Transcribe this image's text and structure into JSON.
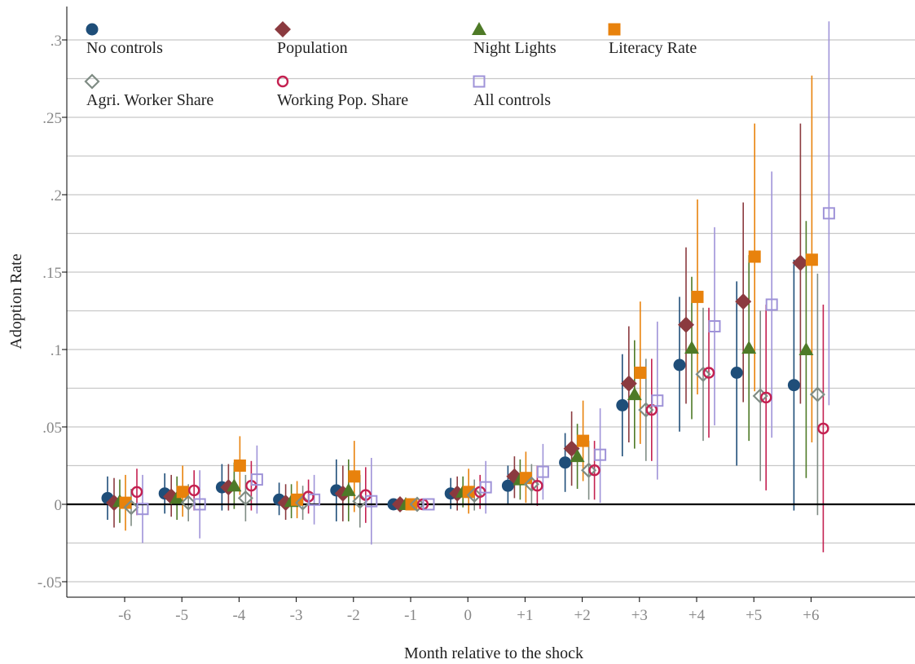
{
  "chart_data": {
    "type": "scatter",
    "xlabel": "Month relative to the shock",
    "ylabel": "Adoption Rate",
    "categories": [
      "-6",
      "-5",
      "-4",
      "-3",
      "-2",
      "-1",
      "0",
      "+1",
      "+2",
      "+3",
      "+4",
      "+5",
      "+6"
    ],
    "ylim": [
      -0.05,
      0.3
    ],
    "yticks": [
      ".3",
      ".25",
      ".2",
      ".15",
      ".1",
      ".05",
      "0",
      "-.05"
    ],
    "ytick_values": [
      0.3,
      0.25,
      0.2,
      0.15,
      0.1,
      0.05,
      0,
      -0.05
    ],
    "grid": true,
    "legend_position": "top",
    "series": [
      {
        "name": "No controls",
        "color": "#1f4e79",
        "marker": "circle",
        "values": [
          0.004,
          0.007,
          0.011,
          0.003,
          0.009,
          0.0,
          0.007,
          0.012,
          0.027,
          0.064,
          0.09,
          0.085,
          0.077
        ],
        "ci_low": [
          -0.01,
          -0.006,
          -0.004,
          -0.007,
          -0.011,
          0.0,
          -0.003,
          0.0,
          0.008,
          0.031,
          0.047,
          0.025,
          -0.004
        ],
        "ci_high": [
          0.018,
          0.02,
          0.026,
          0.014,
          0.029,
          0.0,
          0.017,
          0.025,
          0.046,
          0.097,
          0.134,
          0.144,
          0.158
        ]
      },
      {
        "name": "Population",
        "color": "#8b3a3f",
        "marker": "diamond",
        "values": [
          0.001,
          0.005,
          0.011,
          0.001,
          0.007,
          0.0,
          0.007,
          0.018,
          0.036,
          0.078,
          0.116,
          0.131,
          0.156
        ],
        "ci_low": [
          -0.015,
          -0.008,
          -0.004,
          -0.01,
          -0.011,
          0.0,
          -0.004,
          0.004,
          0.012,
          0.04,
          0.065,
          0.066,
          0.065
        ],
        "ci_high": [
          0.017,
          0.019,
          0.026,
          0.013,
          0.025,
          0.0,
          0.018,
          0.031,
          0.06,
          0.115,
          0.166,
          0.195,
          0.246
        ]
      },
      {
        "name": "Night Lights",
        "color": "#4e7a27",
        "marker": "triangle",
        "values": [
          0.002,
          0.004,
          0.012,
          0.002,
          0.009,
          0.0,
          0.008,
          0.016,
          0.031,
          0.071,
          0.101,
          0.101,
          0.1
        ],
        "ci_low": [
          -0.012,
          -0.01,
          -0.003,
          -0.009,
          -0.011,
          0.0,
          -0.002,
          0.003,
          0.01,
          0.036,
          0.055,
          0.041,
          0.017
        ],
        "ci_high": [
          0.016,
          0.018,
          0.027,
          0.013,
          0.029,
          0.0,
          0.018,
          0.029,
          0.052,
          0.106,
          0.147,
          0.161,
          0.183
        ]
      },
      {
        "name": "Literacy Rate",
        "color": "#e8820c",
        "marker": "square",
        "values": [
          0.001,
          0.008,
          0.025,
          0.003,
          0.018,
          0.0,
          0.008,
          0.017,
          0.041,
          0.085,
          0.134,
          0.16,
          0.158
        ],
        "ci_low": [
          -0.017,
          -0.008,
          0.006,
          -0.009,
          -0.005,
          0.0,
          -0.006,
          0.001,
          0.015,
          0.039,
          0.071,
          0.073,
          0.04
        ],
        "ci_high": [
          0.019,
          0.025,
          0.044,
          0.015,
          0.041,
          0.0,
          0.023,
          0.034,
          0.067,
          0.131,
          0.197,
          0.246,
          0.277
        ]
      },
      {
        "name": "Agri. Worker Share",
        "color": "#7f8c84",
        "marker": "diamond-open",
        "values": [
          -0.002,
          0.001,
          0.004,
          0.001,
          0.002,
          0.0,
          0.006,
          0.013,
          0.022,
          0.061,
          0.084,
          0.07,
          0.071
        ],
        "ci_low": [
          -0.014,
          -0.011,
          -0.011,
          -0.01,
          -0.015,
          0.0,
          -0.004,
          0.0,
          0.003,
          0.028,
          0.041,
          0.015,
          -0.007
        ],
        "ci_high": [
          0.01,
          0.013,
          0.019,
          0.012,
          0.019,
          0.0,
          0.016,
          0.026,
          0.041,
          0.094,
          0.127,
          0.125,
          0.149
        ]
      },
      {
        "name": "Working Pop. Share",
        "color": "#c42050",
        "marker": "circle-open",
        "values": [
          0.008,
          0.009,
          0.012,
          0.005,
          0.006,
          0.0,
          0.008,
          0.012,
          0.022,
          0.061,
          0.085,
          0.069,
          0.049
        ],
        "ci_low": [
          -0.007,
          -0.004,
          -0.004,
          -0.006,
          -0.012,
          0.0,
          -0.003,
          -0.001,
          0.003,
          0.028,
          0.043,
          0.009,
          -0.031
        ],
        "ci_high": [
          0.023,
          0.022,
          0.028,
          0.016,
          0.024,
          0.0,
          0.019,
          0.025,
          0.041,
          0.094,
          0.127,
          0.129,
          0.129
        ]
      },
      {
        "name": "All controls",
        "color": "#9f93d8",
        "marker": "square-open",
        "values": [
          -0.003,
          0.0,
          0.016,
          0.003,
          0.002,
          0.0,
          0.011,
          0.021,
          0.032,
          0.067,
          0.115,
          0.129,
          0.188
        ],
        "ci_low": [
          -0.025,
          -0.022,
          -0.006,
          -0.013,
          -0.026,
          0.0,
          -0.006,
          0.003,
          0.001,
          0.016,
          0.051,
          0.043,
          0.064
        ],
        "ci_high": [
          0.019,
          0.022,
          0.038,
          0.019,
          0.03,
          0.0,
          0.028,
          0.039,
          0.062,
          0.118,
          0.179,
          0.215,
          0.312
        ]
      }
    ]
  }
}
